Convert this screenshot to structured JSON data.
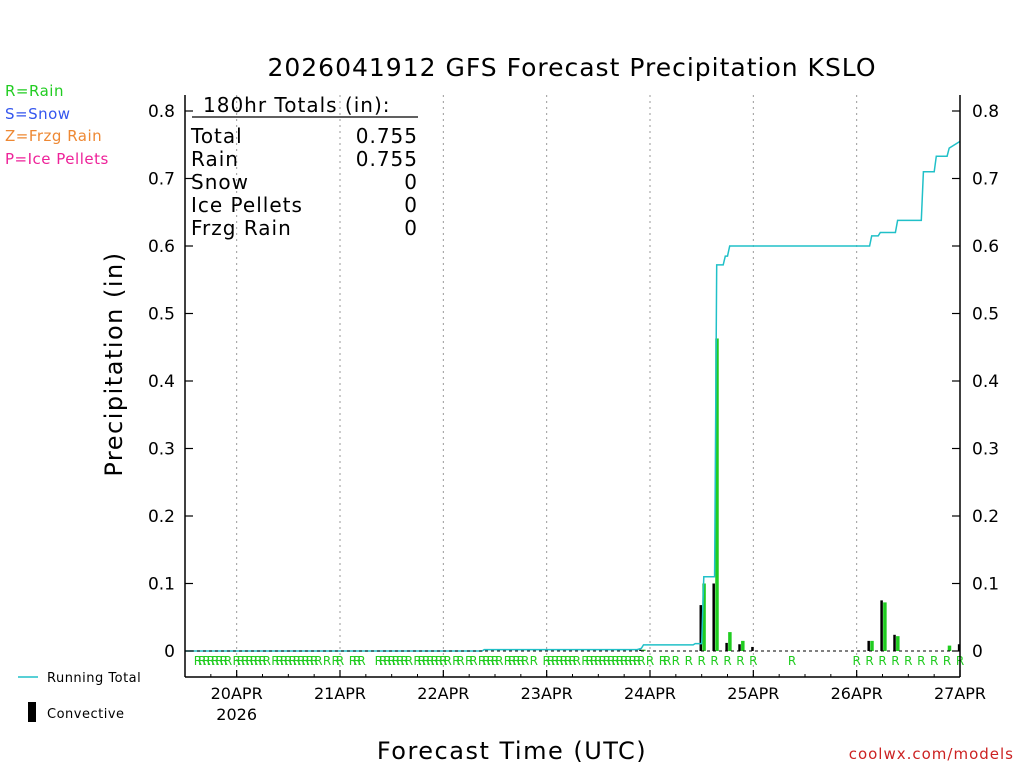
{
  "chart_data": {
    "type": "bar",
    "title": "2026041912 GFS Forecast Precipitation KSLO",
    "ylabel": "Precipitation  (in)",
    "xlabel": "Forecast Time (UTC)",
    "ylim": [
      0,
      0.82
    ],
    "xlim": [
      0,
      180
    ],
    "y_ticks": [
      "0",
      "0.1",
      "0.2",
      "0.3",
      "0.4",
      "0.5",
      "0.6",
      "0.7",
      "0.8"
    ],
    "y_tick_values": [
      0,
      0.1,
      0.2,
      0.3,
      0.4,
      0.5,
      0.6,
      0.7,
      0.8
    ],
    "x_ticks": [
      {
        "label": "20APR",
        "sub": "2026",
        "hour": 12
      },
      {
        "label": "21APR",
        "sub": "",
        "hour": 36
      },
      {
        "label": "22APR",
        "sub": "",
        "hour": 60
      },
      {
        "label": "23APR",
        "sub": "",
        "hour": 84
      },
      {
        "label": "24APR",
        "sub": "",
        "hour": 108
      },
      {
        "label": "25APR",
        "sub": "",
        "hour": 132
      },
      {
        "label": "26APR",
        "sub": "",
        "hour": 156
      },
      {
        "label": "27APR",
        "sub": "",
        "hour": 180
      }
    ],
    "totals": {
      "header": "180hr Totals (in):",
      "rows": [
        {
          "label": "Total",
          "value": "0.755"
        },
        {
          "label": "Rain",
          "value": "0.755"
        },
        {
          "label": "Snow",
          "value": "0"
        },
        {
          "label": "Ice Pellets",
          "value": "0"
        },
        {
          "label": "Frzg Rain",
          "value": "0"
        }
      ]
    },
    "series": [
      {
        "name": "Running Total",
        "color": "#20c0c8",
        "x": [
          0,
          69,
          69.5,
          105,
          106,
          106.5,
          118,
          118.5,
          120,
          120.5,
          121,
          121.5,
          123,
          123.5,
          125,
          125.5,
          126,
          126.5,
          159,
          159.5,
          161,
          161.5,
          162.5,
          163,
          165,
          165.5,
          171,
          171.5,
          174,
          174.5,
          177,
          177.5,
          180
        ],
        "y": [
          0,
          0,
          0.002,
          0.002,
          0.004,
          0.009,
          0.009,
          0.011,
          0.011,
          0.11,
          0.11,
          0.11,
          0.11,
          0.572,
          0.572,
          0.585,
          0.585,
          0.6,
          0.6,
          0.615,
          0.615,
          0.62,
          0.62,
          0.62,
          0.62,
          0.638,
          0.638,
          0.71,
          0.71,
          0.733,
          0.733,
          0.745,
          0.755
        ]
      },
      {
        "name": "Rain",
        "color": "#20cc20",
        "x": [
          106.5,
          120.5,
          123.5,
          126.5,
          129.5,
          159.5,
          162.5,
          165.5,
          177.5
        ],
        "values": [
          0.002,
          0.1,
          0.463,
          0.028,
          0.015,
          0.015,
          0.072,
          0.022,
          0.008
        ]
      },
      {
        "name": "Convective",
        "color": "#000000",
        "x": [
          106.2,
          120.2,
          123.2,
          126.2,
          129.2,
          132.2,
          159.2,
          162.2,
          165.2,
          180.2
        ],
        "values": [
          0.002,
          0.068,
          0.1,
          0.012,
          0.01,
          0.006,
          0.015,
          0.075,
          0.024,
          0.01
        ]
      }
    ],
    "precip_type_markers": {
      "letter": "R",
      "color": "#20cc20",
      "hours": [
        3,
        4,
        5,
        6,
        7,
        8,
        9,
        10,
        12,
        13,
        14,
        15,
        16,
        17,
        18,
        19,
        21,
        22,
        23,
        24,
        25,
        26,
        27,
        28,
        29,
        30,
        31,
        33,
        35,
        36,
        39,
        40,
        41,
        45,
        46,
        47,
        48,
        49,
        50,
        51,
        52,
        54,
        55,
        56,
        57,
        58,
        59,
        60,
        61,
        63,
        64,
        66,
        67,
        69,
        70,
        71,
        72,
        73,
        75,
        76,
        77,
        78,
        79,
        81,
        84,
        85,
        86,
        87,
        88,
        89,
        90,
        91,
        93,
        94,
        95,
        96,
        97,
        98,
        99,
        100,
        101,
        102,
        103,
        104,
        105,
        106,
        108,
        111,
        112,
        114,
        117,
        120,
        123,
        126,
        129,
        132,
        141,
        156,
        159,
        162,
        165,
        168,
        171,
        174,
        177,
        180
      ]
    },
    "legend": [
      {
        "label": "Running Total",
        "kind": "line",
        "color": "#20c0c8"
      },
      {
        "label": "Convective",
        "kind": "bar",
        "color": "#000000"
      }
    ]
  },
  "type_legend": [
    {
      "text": "R=Rain",
      "color": "#22cc22"
    },
    {
      "text": "S=Snow",
      "color": "#3355ee"
    },
    {
      "text": "Z=Frzg Rain",
      "color": "#ee8833"
    },
    {
      "text": "P=Ice Pellets",
      "color": "#ee2299"
    }
  ],
  "footer": "coolwx.com/models"
}
